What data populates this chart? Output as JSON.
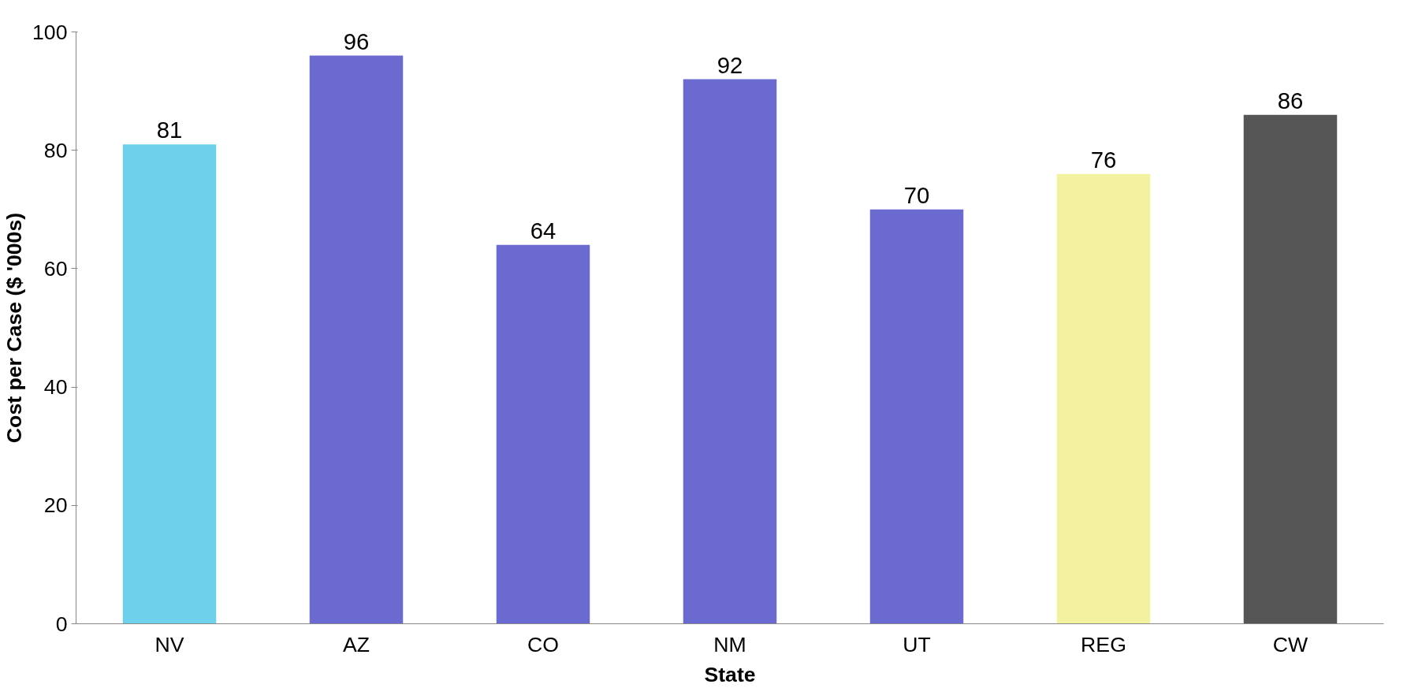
{
  "chart_data": {
    "type": "bar",
    "xlabel": "State",
    "ylabel": "Cost per Case ($ '000s)",
    "categories": [
      "NV",
      "AZ",
      "CO",
      "NM",
      "UT",
      "REG",
      "CW"
    ],
    "values": [
      81,
      96,
      64,
      92,
      70,
      76,
      86
    ],
    "colors": [
      "#6fd0ec",
      "#6a6ad0",
      "#6a6ad0",
      "#6a6ad0",
      "#6a6ad0",
      "#f2f2a0",
      "#555555"
    ],
    "ylim": [
      0,
      100
    ],
    "yticks": [
      0,
      20,
      40,
      60,
      80,
      100
    ],
    "grid": false,
    "data_labels": true
  }
}
